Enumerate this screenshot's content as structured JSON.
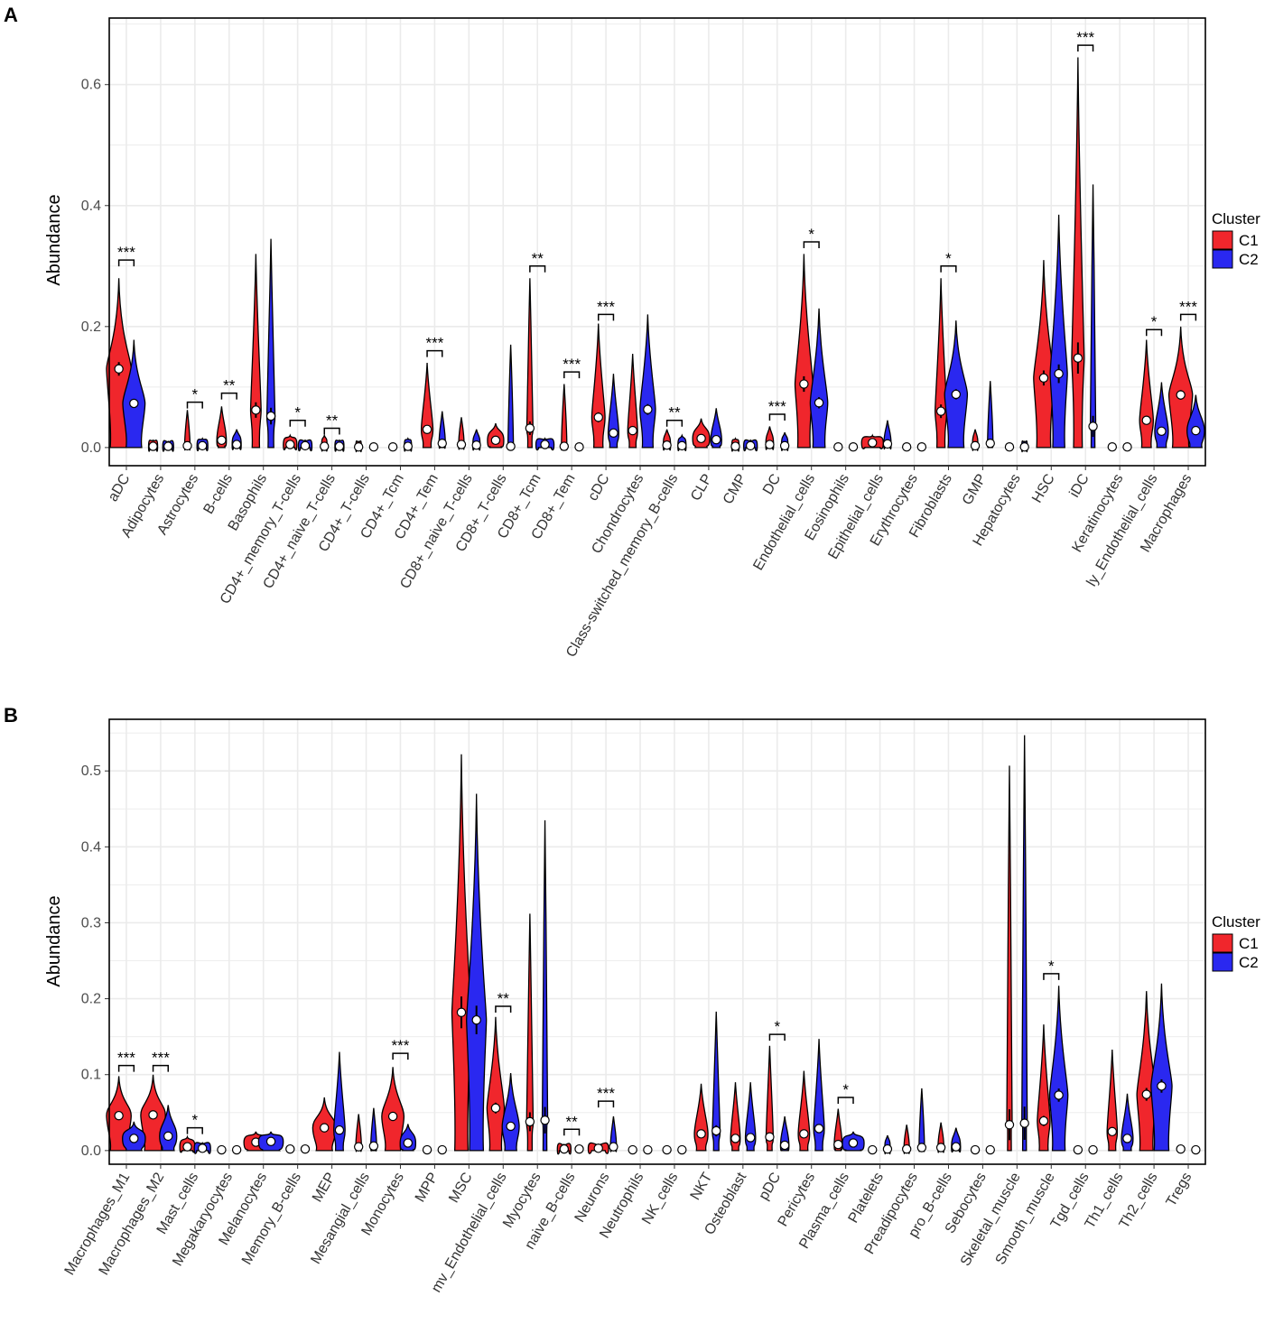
{
  "legend": {
    "title": "Cluster",
    "items": [
      "C1",
      "C2"
    ]
  },
  "colors": {
    "C1": "#f0262c",
    "C2": "#2a28f0"
  },
  "chart_data": [
    {
      "type": "violin",
      "panel": "A",
      "ylabel": "Abundance",
      "ylim": [
        -0.03,
        0.71
      ],
      "yticks": [
        0.0,
        0.2,
        0.4,
        0.6
      ],
      "ytick_labels": [
        "0.0",
        "0.2",
        "0.4",
        "0.6"
      ],
      "categories": [
        "aDC",
        "Adipocytes",
        "Astrocytes",
        "B-cells",
        "Basophils",
        "CD4+_memory_T-cells",
        "CD4+_naive_T-cells",
        "CD4+_T-cells",
        "CD4+_Tcm",
        "CD4+_Tem",
        "CD8+_naive_T-cells",
        "CD8+_T-cells",
        "CD8+_Tcm",
        "CD8+_Tem",
        "cDC",
        "Chondrocytes",
        "Class-switched_memory_B-cells",
        "CLP",
        "CMP",
        "DC",
        "Endothelial_cells",
        "Eosinophils",
        "Epithelial_cells",
        "Erythrocytes",
        "Fibroblasts",
        "GMP",
        "Hepatocytes",
        "HSC",
        "iDC",
        "Keratinocytes",
        "ly_Endothelial_cells",
        "Macrophages"
      ],
      "series": [
        {
          "name": "C1",
          "means": [
            0.13,
            0.002,
            0.003,
            0.012,
            0.062,
            0.005,
            0.002,
            0.001,
            0.001,
            0.03,
            0.005,
            0.012,
            0.032,
            0.002,
            0.05,
            0.028,
            0.004,
            0.015,
            0.002,
            0.005,
            0.105,
            0.001,
            0.008,
            0.001,
            0.06,
            0.003,
            0.001,
            0.115,
            0.148,
            0.001,
            0.045,
            0.087
          ],
          "maxes": [
            0.28,
            0.012,
            0.062,
            0.068,
            0.32,
            0.02,
            0.02,
            0.01,
            0.005,
            0.14,
            0.05,
            0.04,
            0.28,
            0.105,
            0.205,
            0.155,
            0.03,
            0.048,
            0.015,
            0.035,
            0.32,
            0.005,
            0.02,
            0.002,
            0.28,
            0.03,
            0.005,
            0.31,
            0.645,
            0.003,
            0.178,
            0.2
          ]
        },
        {
          "name": "C2",
          "means": [
            0.073,
            0.002,
            0.003,
            0.005,
            0.052,
            0.003,
            0.002,
            0.001,
            0.002,
            0.007,
            0.004,
            0.002,
            0.005,
            0.001,
            0.024,
            0.063,
            0.003,
            0.013,
            0.003,
            0.003,
            0.074,
            0.001,
            0.006,
            0.001,
            0.088,
            0.007,
            0.001,
            0.122,
            0.035,
            0.001,
            0.027,
            0.028
          ],
          "maxes": [
            0.178,
            0.01,
            0.015,
            0.03,
            0.345,
            0.012,
            0.012,
            0.006,
            0.015,
            0.06,
            0.03,
            0.17,
            0.015,
            0.005,
            0.122,
            0.22,
            0.02,
            0.065,
            0.012,
            0.025,
            0.23,
            0.004,
            0.045,
            0.002,
            0.21,
            0.11,
            0.01,
            0.385,
            0.435,
            0.003,
            0.108,
            0.087
          ]
        }
      ],
      "significance": [
        {
          "category": "aDC",
          "label": "***",
          "y": 0.31
        },
        {
          "category": "Astrocytes",
          "label": "*",
          "y": 0.075
        },
        {
          "category": "B-cells",
          "label": "**",
          "y": 0.09
        },
        {
          "category": "CD4+_memory_T-cells",
          "label": "*",
          "y": 0.045
        },
        {
          "category": "CD4+_naive_T-cells",
          "label": "**",
          "y": 0.032
        },
        {
          "category": "CD4+_Tem",
          "label": "***",
          "y": 0.16
        },
        {
          "category": "CD8+_Tcm",
          "label": "**",
          "y": 0.3
        },
        {
          "category": "CD8+_Tem",
          "label": "***",
          "y": 0.125
        },
        {
          "category": "cDC",
          "label": "***",
          "y": 0.22
        },
        {
          "category": "Class-switched_memory_B-cells",
          "label": "**",
          "y": 0.045
        },
        {
          "category": "DC",
          "label": "***",
          "y": 0.055
        },
        {
          "category": "Endothelial_cells",
          "label": "*",
          "y": 0.34
        },
        {
          "category": "Fibroblasts",
          "label": "*",
          "y": 0.3
        },
        {
          "category": "iDC",
          "label": "***",
          "y": 0.665
        },
        {
          "category": "ly_Endothelial_cells",
          "label": "*",
          "y": 0.195
        },
        {
          "category": "Macrophages",
          "label": "***",
          "y": 0.22
        }
      ]
    },
    {
      "type": "violin",
      "panel": "B",
      "ylabel": "Abundance",
      "ylim": [
        -0.018,
        0.568
      ],
      "yticks": [
        0.0,
        0.1,
        0.2,
        0.3,
        0.4,
        0.5
      ],
      "ytick_labels": [
        "0.0",
        "0.1",
        "0.2",
        "0.3",
        "0.4",
        "0.5"
      ],
      "categories": [
        "Macrophages_M1",
        "Macrophages_M2",
        "Mast_cells",
        "Megakaryocytes",
        "Melanocytes",
        "Memory_B-cells",
        "MEP",
        "Mesangial_cells",
        "Monocytes",
        "MPP",
        "MSC",
        "mv_Endothelial_cells",
        "Myocytes",
        "naive_B-cells",
        "Neurons",
        "Neutrophils",
        "NK_cells",
        "NKT",
        "Osteoblast",
        "pDC",
        "Pericytes",
        "Plasma_cells",
        "Platelets",
        "Preadipocytes",
        "pro_B-cells",
        "Sebocytes",
        "Skeletal_muscle",
        "Smooth_muscle",
        "Tgd_cells",
        "Th1_cells",
        "Th2_cells",
        "Tregs"
      ],
      "series": [
        {
          "name": "C1",
          "means": [
            0.046,
            0.047,
            0.005,
            0.001,
            0.011,
            0.002,
            0.03,
            0.005,
            0.045,
            0.001,
            0.182,
            0.056,
            0.038,
            0.002,
            0.003,
            0.001,
            0.001,
            0.022,
            0.016,
            0.018,
            0.022,
            0.008,
            0.001,
            0.002,
            0.004,
            0.001,
            0.034,
            0.039,
            0.001,
            0.025,
            0.074,
            0.002
          ],
          "maxes": [
            0.098,
            0.1,
            0.018,
            0.002,
            0.025,
            0.005,
            0.07,
            0.048,
            0.11,
            0.002,
            0.522,
            0.176,
            0.312,
            0.008,
            0.008,
            0.002,
            0.002,
            0.088,
            0.09,
            0.138,
            0.105,
            0.055,
            0.005,
            0.034,
            0.037,
            0.002,
            0.507,
            0.166,
            0.002,
            0.133,
            0.21,
            0.006
          ]
        },
        {
          "name": "C2",
          "means": [
            0.016,
            0.019,
            0.003,
            0.001,
            0.012,
            0.002,
            0.027,
            0.006,
            0.01,
            0.001,
            0.172,
            0.032,
            0.04,
            0.002,
            0.005,
            0.001,
            0.001,
            0.026,
            0.017,
            0.007,
            0.029,
            0.01,
            0.002,
            0.004,
            0.005,
            0.001,
            0.036,
            0.073,
            0.001,
            0.016,
            0.085,
            0.001
          ],
          "maxes": [
            0.038,
            0.06,
            0.01,
            0.002,
            0.025,
            0.004,
            0.13,
            0.056,
            0.035,
            0.002,
            0.47,
            0.102,
            0.435,
            0.006,
            0.045,
            0.002,
            0.002,
            0.183,
            0.09,
            0.045,
            0.147,
            0.025,
            0.02,
            0.082,
            0.03,
            0.002,
            0.547,
            0.217,
            0.002,
            0.075,
            0.22,
            0.005
          ]
        }
      ],
      "significance": [
        {
          "category": "Macrophages_M1",
          "label": "***",
          "y": 0.112
        },
        {
          "category": "Macrophages_M2",
          "label": "***",
          "y": 0.112
        },
        {
          "category": "Mast_cells",
          "label": "*",
          "y": 0.03
        },
        {
          "category": "Monocytes",
          "label": "***",
          "y": 0.128
        },
        {
          "category": "mv_Endothelial_cells",
          "label": "**",
          "y": 0.19
        },
        {
          "category": "naive_B-cells",
          "label": "**",
          "y": 0.028
        },
        {
          "category": "Neurons",
          "label": "***",
          "y": 0.065
        },
        {
          "category": "pDC",
          "label": "*",
          "y": 0.153
        },
        {
          "category": "Plasma_cells",
          "label": "*",
          "y": 0.07
        },
        {
          "category": "Smooth_muscle",
          "label": "*",
          "y": 0.233
        }
      ]
    }
  ]
}
